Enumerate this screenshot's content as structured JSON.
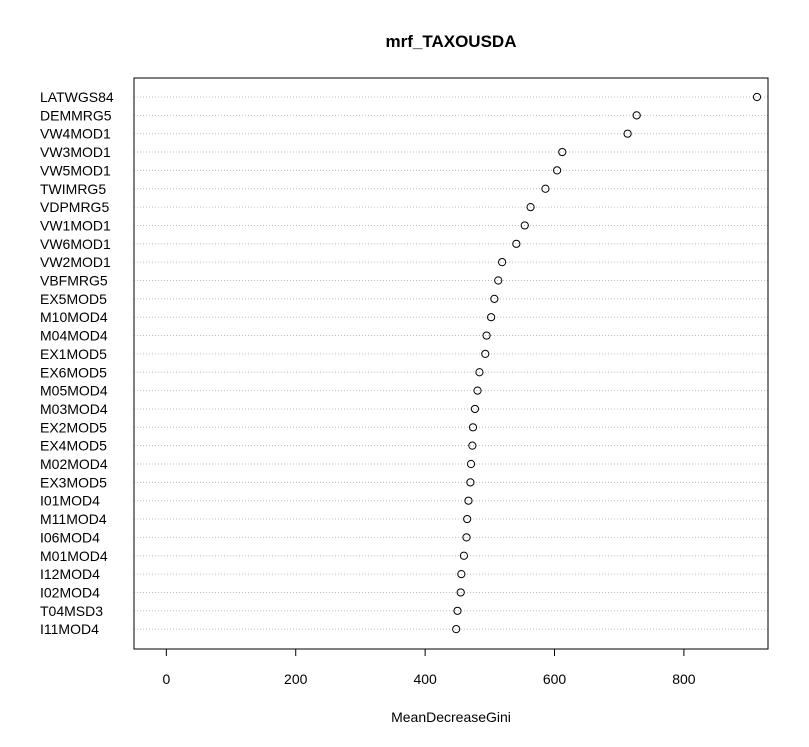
{
  "chart_data": {
    "type": "scatter",
    "title": "mrf_TAXOUSDA",
    "xlabel": "MeanDecreaseGini",
    "ylabel": "",
    "xlim": [
      -50,
      930
    ],
    "xticks": [
      0,
      200,
      400,
      600,
      800
    ],
    "grid": "dotted horizontal guide lines per category",
    "marker": "open circle",
    "categories": [
      "LATWGS84",
      "DEMMRG5",
      "VW4MOD1",
      "VW3MOD1",
      "VW5MOD1",
      "TWIMRG5",
      "VDPMRG5",
      "VW1MOD1",
      "VW6MOD1",
      "VW2MOD1",
      "VBFMRG5",
      "EX5MOD5",
      "M10MOD4",
      "M04MOD4",
      "EX1MOD5",
      "EX6MOD5",
      "M05MOD4",
      "M03MOD4",
      "EX2MOD5",
      "EX4MOD5",
      "M02MOD4",
      "EX3MOD5",
      "I01MOD4",
      "M11MOD4",
      "I06MOD4",
      "M01MOD4",
      "I12MOD4",
      "I02MOD4",
      "T04MSD3",
      "I11MOD4"
    ],
    "values": [
      913,
      727,
      713,
      612,
      604,
      586,
      563,
      554,
      541,
      519,
      513,
      507,
      502,
      495,
      493,
      484,
      481,
      477,
      474,
      473,
      471,
      470,
      467,
      465,
      464,
      460,
      456,
      455,
      450,
      448
    ]
  }
}
